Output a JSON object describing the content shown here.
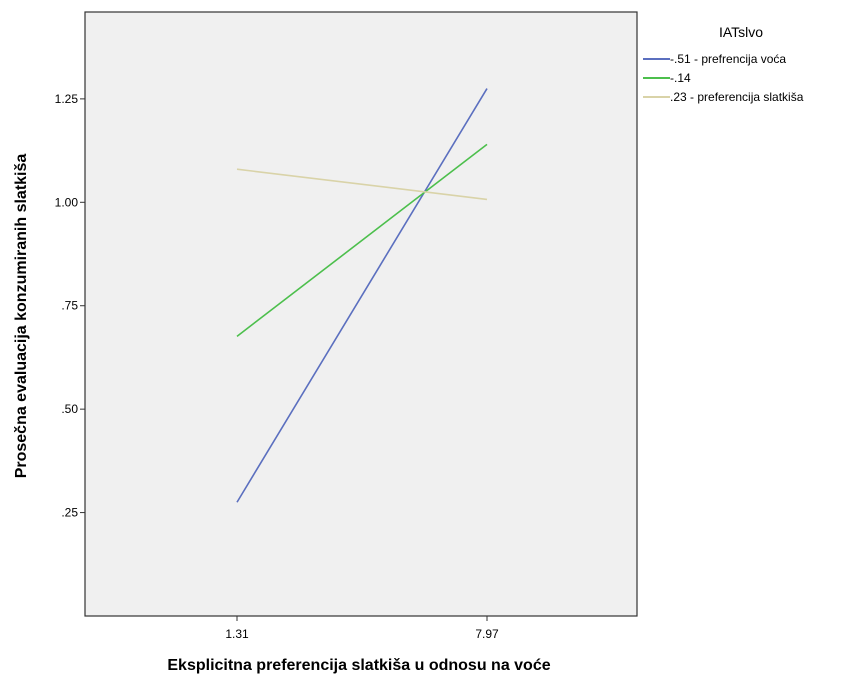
{
  "chart_data": {
    "type": "line",
    "xlabel": "Eksplicitna preferencija slatkiša u odnosu na voće",
    "ylabel": "Prosečna evaluacija konzumiranih slatkiša",
    "categories": [
      "1.31",
      "7.97"
    ],
    "ylim": [
      0.0,
      1.46
    ],
    "yticks": [
      0.25,
      0.5,
      0.75,
      1.0,
      1.25
    ],
    "ytick_labels": [
      ".25",
      ".50",
      ".75",
      "1.00",
      "1.25"
    ],
    "grid": false,
    "legend_position": "right",
    "legend_title": "IATslvo",
    "plot_background": "#f0f0f0",
    "series": [
      {
        "name": "-.51 - prefrencija voća",
        "color": "#5b6fbf",
        "values": [
          0.275,
          1.275
        ]
      },
      {
        "name": "-.14",
        "color": "#4cbf4c",
        "values": [
          0.676,
          1.14
        ]
      },
      {
        "name": ".23 - preferencija slatkiša",
        "color": "#d9d3a8",
        "values": [
          1.08,
          1.007
        ]
      }
    ]
  }
}
